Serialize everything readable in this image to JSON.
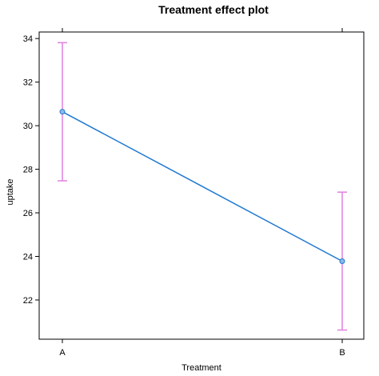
{
  "chart_data": {
    "type": "line",
    "title": "Treatment effect plot",
    "xlabel": "Treatment",
    "ylabel": "uptake",
    "categories": [
      "A",
      "B"
    ],
    "series": [
      {
        "values": [
          30.64,
          23.78
        ],
        "lower": [
          27.47,
          20.62
        ],
        "upper": [
          33.81,
          26.95
        ]
      }
    ],
    "ylim": [
      20.2,
      34.3
    ],
    "yticks": [
      22,
      24,
      26,
      28,
      30,
      32,
      34
    ],
    "grid": false,
    "colors": {
      "line": "#1f78d0",
      "point_fill": "#8fb8e6",
      "error_bar": "#e080e0",
      "axis": "#000000"
    }
  }
}
